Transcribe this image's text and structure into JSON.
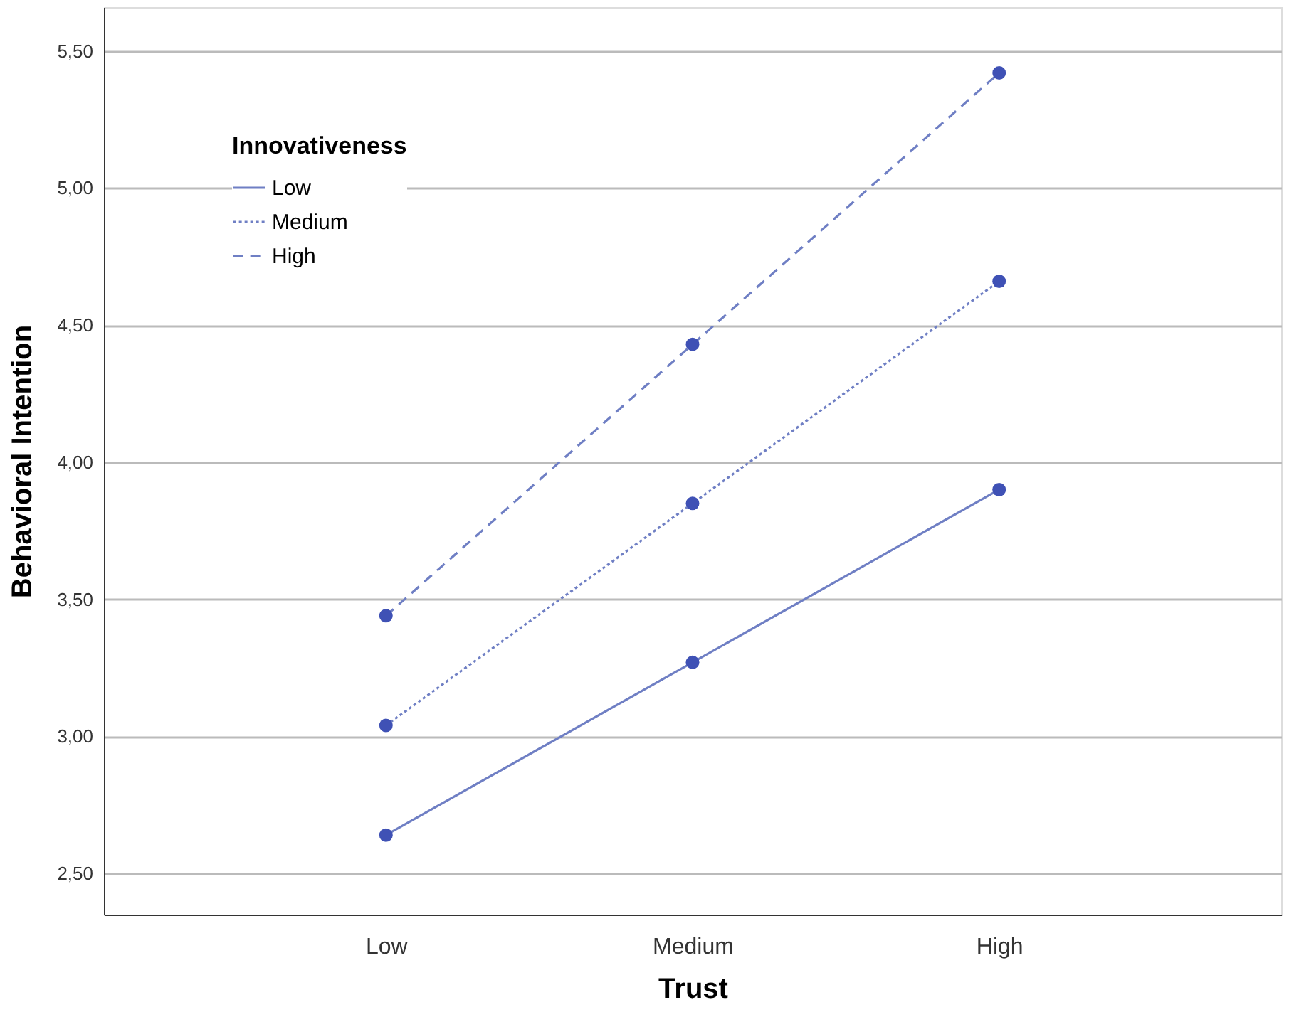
{
  "chart_data": {
    "type": "line",
    "xlabel": "Trust",
    "ylabel": "Behavioral Intention",
    "legend_title": "Innovativeness",
    "categories": [
      "Low",
      "Medium",
      "High"
    ],
    "ylim": [
      2.35,
      5.66
    ],
    "yticks": [
      {
        "value": 2.5,
        "label": "2,50"
      },
      {
        "value": 3.0,
        "label": "3,00"
      },
      {
        "value": 3.5,
        "label": "3,50"
      },
      {
        "value": 4.0,
        "label": "4,00"
      },
      {
        "value": 4.5,
        "label": "4,50"
      },
      {
        "value": 5.0,
        "label": "5,00"
      },
      {
        "value": 5.5,
        "label": "5,50"
      }
    ],
    "grid": "y",
    "legend": "top left",
    "series": [
      {
        "name": "Low",
        "color": "#6f7fc4",
        "line_style": "solid",
        "marker": "none",
        "values": [
          2.64,
          3.27,
          3.9
        ]
      },
      {
        "name": "Medium",
        "color": "#6f7fc4",
        "line_style": "dotted",
        "marker": "none",
        "values": [
          3.04,
          3.85,
          4.66
        ]
      },
      {
        "name": "High",
        "color": "#6f7fc4",
        "line_style": "dashed",
        "marker": "none",
        "values": [
          3.44,
          4.43,
          5.42
        ]
      },
      {
        "type": "scatter",
        "color": "#3f51b5",
        "marker": "circle",
        "values": [
          2.64,
          3.27,
          3.9
        ]
      },
      {
        "type": "scatter",
        "color": "#3f51b5",
        "marker": "circle",
        "values": [
          3.04,
          3.85,
          4.66
        ]
      },
      {
        "type": "scatter",
        "color": "#3f51b5",
        "marker": "circle",
        "values": [
          3.44,
          4.43,
          5.42
        ]
      }
    ]
  }
}
